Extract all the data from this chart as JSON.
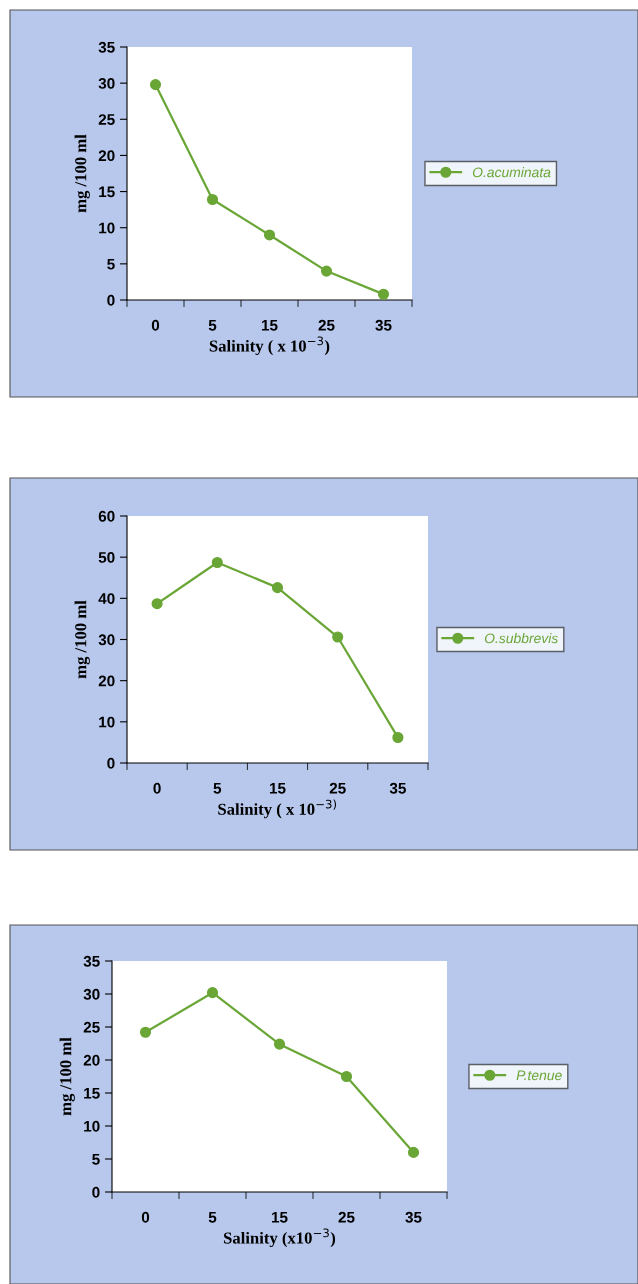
{
  "chart_data": [
    {
      "type": "line",
      "categories": [
        "0",
        "5",
        "15",
        "25",
        "35"
      ],
      "xlabel": "Salinity ( x 10$^{−3}$)",
      "ylabel": "mg /100 ml",
      "ylim": [
        0,
        35
      ],
      "yticks": [
        0,
        5,
        10,
        15,
        20,
        25,
        30,
        35
      ],
      "marker": "circle",
      "line_style": "solid",
      "grid": false,
      "legend": "right",
      "series": [
        {
          "name": "O.acuminata",
          "color": "#6aa636",
          "values": [
            29.8,
            13.9,
            9,
            4,
            0.8
          ]
        }
      ]
    },
    {
      "type": "line",
      "categories": [
        "0",
        "5",
        "15",
        "25",
        "35"
      ],
      "xlabel": "Salinity ( x 10$^{−3)}$",
      "ylabel": "mg /100 ml",
      "ylim": [
        0,
        60
      ],
      "yticks": [
        0,
        10,
        20,
        30,
        40,
        50,
        60
      ],
      "marker": "circle",
      "line_style": "solid",
      "grid": false,
      "legend": "right",
      "series": [
        {
          "name": "O.subbrevis",
          "color": "#6aa636",
          "values": [
            38.7,
            48.7,
            42.6,
            30.6,
            6.2
          ]
        }
      ]
    },
    {
      "type": "line",
      "categories": [
        "0",
        "5",
        "15",
        "25",
        "35"
      ],
      "xlabel": "Salinity (x10$^{−3}$)",
      "ylabel": "mg /100 ml",
      "ylim": [
        0,
        35
      ],
      "yticks": [
        0,
        5,
        10,
        15,
        20,
        25,
        30,
        35
      ],
      "marker": "circle",
      "line_style": "solid",
      "grid": false,
      "legend": "right",
      "series": [
        {
          "name": "P.tenue",
          "color": "#6aa636",
          "values": [
            24.2,
            30.2,
            22.4,
            17.5,
            6.0
          ]
        }
      ]
    }
  ]
}
